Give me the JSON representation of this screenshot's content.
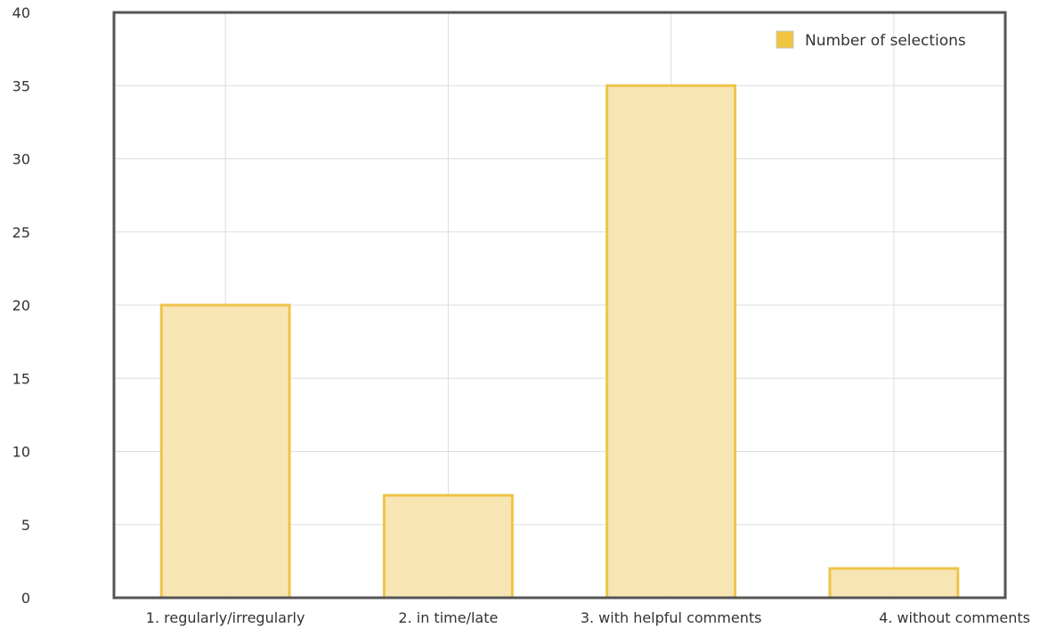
{
  "chart_data": {
    "type": "bar",
    "categories": [
      "1. regularly/irregularly",
      "2. in time/late",
      "3. with helpful comments",
      "4. without comments"
    ],
    "series": [
      {
        "name": "Number of selections",
        "values": [
          20,
          7,
          35,
          2
        ]
      }
    ],
    "ylim": [
      0,
      40
    ],
    "yticks": [
      0,
      5,
      10,
      15,
      20,
      25,
      30,
      35,
      40
    ],
    "grid": true,
    "legend_position": "top-right",
    "colors": {
      "bar_fill": "#f7e4b0",
      "bar_stroke": "#eec449",
      "legend_swatch": "#f0c540",
      "grid": "#dddddd",
      "axis": "#555555"
    }
  }
}
